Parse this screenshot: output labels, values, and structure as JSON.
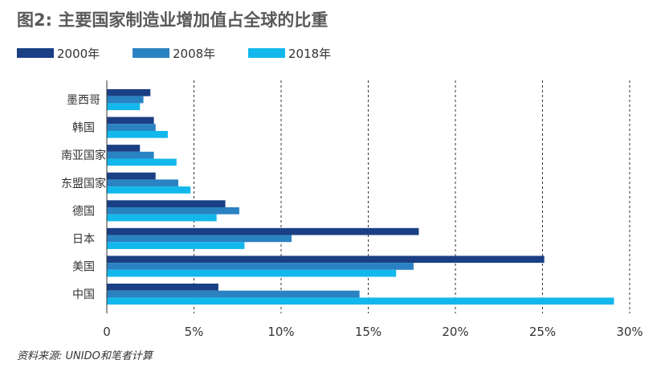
{
  "title": "图2: 主要国家制造业增加值占全球的比重",
  "source": "资料来源: UNIDO和笔者计算",
  "colors": {
    "s2000": "#1a3f84",
    "s2008": "#2a82c2",
    "s2018": "#12b8ec",
    "axis": "#333333",
    "grid": "#333333"
  },
  "chart_data": {
    "type": "bar",
    "orientation": "horizontal",
    "categories": [
      "墨西哥",
      "韩国",
      "南亚国家",
      "东盟国家",
      "德国",
      "日本",
      "美国",
      "中国"
    ],
    "series": [
      {
        "name": "2000年",
        "values": [
          2.5,
          2.7,
          1.9,
          2.8,
          6.8,
          17.9,
          25.1,
          6.4
        ]
      },
      {
        "name": "2008年",
        "values": [
          2.1,
          2.8,
          2.7,
          4.1,
          7.6,
          10.6,
          17.6,
          14.5
        ]
      },
      {
        "name": "2018年",
        "values": [
          1.9,
          3.5,
          4.0,
          4.8,
          6.3,
          7.9,
          16.6,
          29.1
        ]
      }
    ],
    "xlim": [
      0,
      30
    ],
    "xticks": [
      "0",
      "5%",
      "10%",
      "15%",
      "20%",
      "25%",
      "30%"
    ],
    "xtick_values": [
      0,
      5,
      10,
      15,
      20,
      25,
      30
    ],
    "grid": "vertical-dashed",
    "legend_position": "top-left"
  }
}
